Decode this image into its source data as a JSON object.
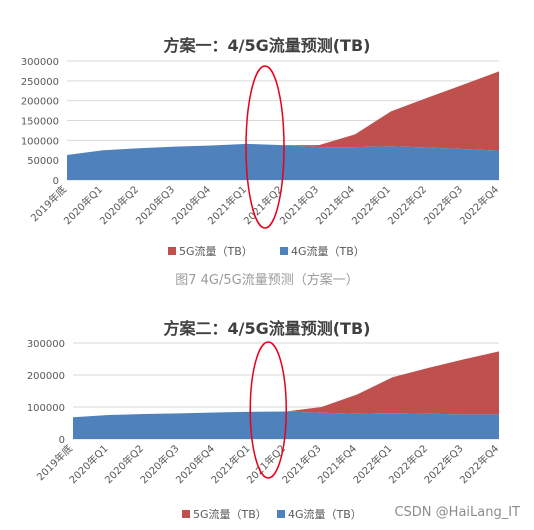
{
  "caption": "图7 4G/5G流量预测（方案一）",
  "watermark": "CSDN @HaiLang_IT",
  "colors": {
    "g4": "#4f81bd",
    "g5": "#c0504d",
    "grid": "#d9d9d9",
    "annotation": "#e8001c"
  },
  "chart_data": [
    {
      "type": "area",
      "stacked": true,
      "title": "方案一：4/5G流量预测(TB)",
      "categories": [
        "2019年底",
        "2020年Q1",
        "2020年Q2",
        "2020年Q3",
        "2020年Q4",
        "2021年Q1",
        "2021年Q2",
        "2021年Q3",
        "2021年Q4",
        "2022年Q1",
        "2022年Q2",
        "2022年Q3",
        "2022年Q4"
      ],
      "series": [
        {
          "name": "4G流量（TB）",
          "values": [
            63000,
            75000,
            80000,
            84000,
            87000,
            91000,
            88000,
            83000,
            83000,
            85000,
            82000,
            78000,
            74000
          ]
        },
        {
          "name": "5G流量（TB）",
          "values": [
            0,
            0,
            0,
            0,
            0,
            0,
            0,
            5000,
            32000,
            88000,
            125000,
            162000,
            200000
          ]
        }
      ],
      "yticks": [
        0,
        50000,
        100000,
        150000,
        200000,
        250000,
        300000
      ],
      "ylim": [
        0,
        300000
      ],
      "legend": [
        "5G流量（TB）",
        "4G流量（TB）"
      ],
      "legend_position": "bottom",
      "grid": true,
      "annotation": "red ellipse around 2021年Q1–2021年Q2"
    },
    {
      "type": "area",
      "stacked": true,
      "title": "方案二：4/5G流量预测(TB)",
      "categories": [
        "2019年底",
        "2020年Q1",
        "2020年Q2",
        "2020年Q3",
        "2020年Q4",
        "2021年Q1",
        "2021年Q2",
        "2021年Q3",
        "2021年Q4",
        "2022年Q1",
        "2022年Q2",
        "2022年Q3",
        "2022年Q4"
      ],
      "series": [
        {
          "name": "4G流量（TB）",
          "values": [
            68000,
            75000,
            78000,
            80000,
            83000,
            85000,
            86000,
            82000,
            79000,
            81000,
            79000,
            77000,
            77000
          ]
        },
        {
          "name": "5G流量（TB）",
          "values": [
            0,
            0,
            0,
            0,
            0,
            0,
            0,
            18000,
            60000,
            112000,
            143000,
            172000,
            197000
          ]
        }
      ],
      "yticks": [
        0,
        100000,
        200000,
        300000
      ],
      "ylim": [
        0,
        300000
      ],
      "legend": [
        "5G流量（TB）",
        "4G流量（TB）"
      ],
      "legend_position": "bottom",
      "grid": true,
      "annotation": "red ellipse around 2021年Q1–2021年Q2"
    }
  ]
}
